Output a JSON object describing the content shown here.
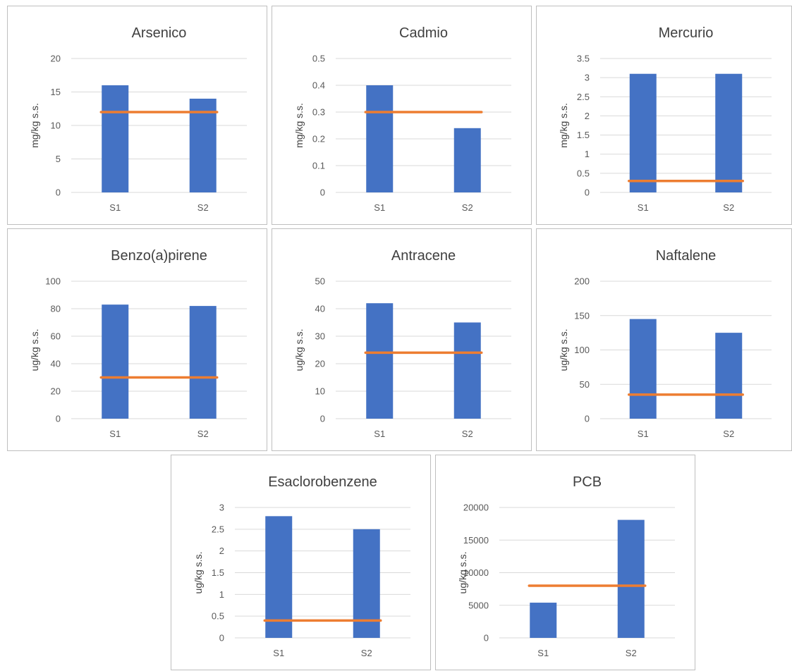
{
  "colors": {
    "bar": "#4472C4",
    "limit_line": "#ED7D31",
    "grid": "#D9D9D9",
    "border": "#BFBFBF"
  },
  "chart_data": [
    {
      "type": "bar",
      "title": "Arsenico",
      "ylabel": "mg/kg s.s.",
      "categories": [
        "S1",
        "S2"
      ],
      "values": [
        16,
        14
      ],
      "limit": 12,
      "ylim": [
        0,
        20
      ],
      "yticks": [
        0,
        5,
        10,
        15,
        20
      ]
    },
    {
      "type": "bar",
      "title": "Cadmio",
      "ylabel": "mg/kg s.s.",
      "categories": [
        "S1",
        "S2"
      ],
      "values": [
        0.4,
        0.24
      ],
      "limit": 0.3,
      "ylim": [
        0,
        0.5
      ],
      "yticks": [
        0,
        0.1,
        0.2,
        0.3,
        0.4,
        0.5
      ]
    },
    {
      "type": "bar",
      "title": "Mercurio",
      "ylabel": "mg/kg s.s.",
      "categories": [
        "S1",
        "S2"
      ],
      "values": [
        3.1,
        3.1
      ],
      "limit": 0.3,
      "ylim": [
        0,
        3.5
      ],
      "yticks": [
        0,
        0.5,
        1,
        1.5,
        2,
        2.5,
        3,
        3.5
      ]
    },
    {
      "type": "bar",
      "title": "Benzo(a)pirene",
      "ylabel": "ug/kg s.s.",
      "categories": [
        "S1",
        "S2"
      ],
      "values": [
        83,
        82
      ],
      "limit": 30,
      "ylim": [
        0,
        100
      ],
      "yticks": [
        0,
        20,
        40,
        60,
        80,
        100
      ]
    },
    {
      "type": "bar",
      "title": "Antracene",
      "ylabel": "ug/kg s.s.",
      "categories": [
        "S1",
        "S2"
      ],
      "values": [
        42,
        35
      ],
      "limit": 24,
      "ylim": [
        0,
        50
      ],
      "yticks": [
        0,
        10,
        20,
        30,
        40,
        50
      ]
    },
    {
      "type": "bar",
      "title": "Naftalene",
      "ylabel": "ug/kg s.s.",
      "categories": [
        "S1",
        "S2"
      ],
      "values": [
        145,
        125
      ],
      "limit": 35,
      "ylim": [
        0,
        200
      ],
      "yticks": [
        0,
        50,
        100,
        150,
        200
      ]
    },
    {
      "type": "bar",
      "title": "Esaclorobenzene",
      "ylabel": "ug/kg s.s.",
      "categories": [
        "S1",
        "S2"
      ],
      "values": [
        2.8,
        2.5
      ],
      "limit": 0.4,
      "ylim": [
        0,
        3
      ],
      "yticks": [
        0,
        0.5,
        1,
        1.5,
        2,
        2.5,
        3
      ]
    },
    {
      "type": "bar",
      "title": "PCB",
      "ylabel": "ug/kg s.s.",
      "categories": [
        "S1",
        "S2"
      ],
      "values": [
        5400,
        18100
      ],
      "limit": 8000,
      "ylim": [
        0,
        20000
      ],
      "yticks": [
        0,
        5000,
        10000,
        15000,
        20000
      ]
    }
  ]
}
